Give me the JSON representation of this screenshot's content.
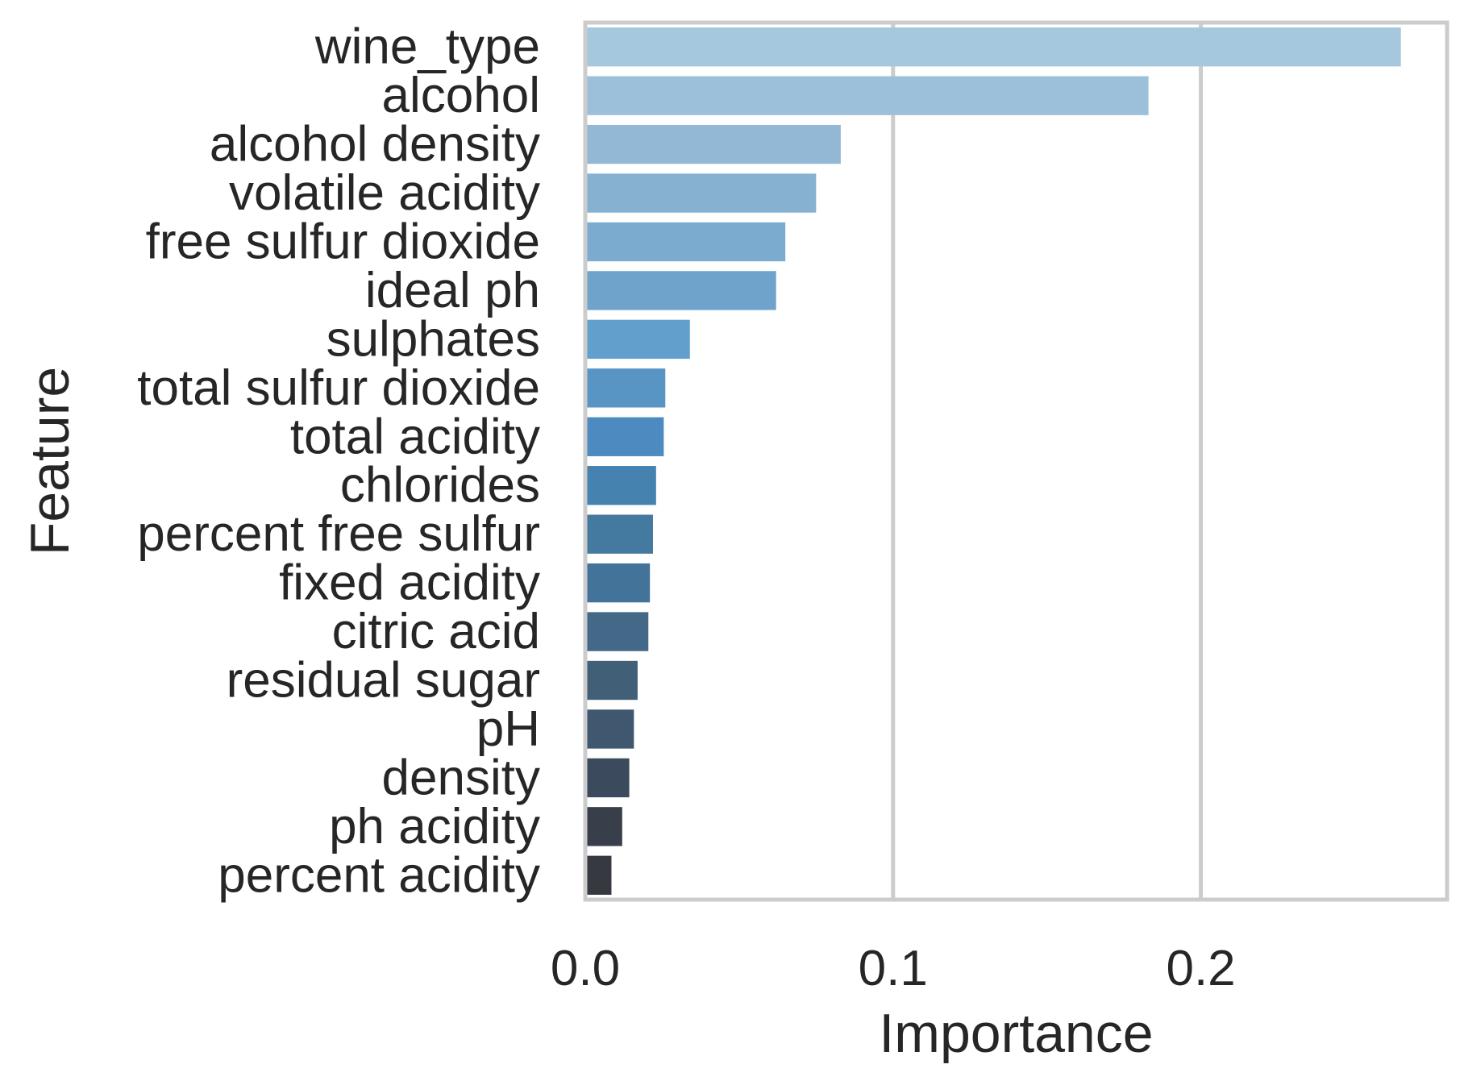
{
  "chart_data": {
    "type": "bar",
    "orientation": "horizontal",
    "title": "",
    "xlabel": "Importance",
    "ylabel": "Feature",
    "xlim": [
      0,
      0.28
    ],
    "xticks": [
      0.0,
      0.1,
      0.2
    ],
    "xtick_labels": [
      "0.0",
      "0.1",
      "0.2"
    ],
    "grid": "vertical",
    "categories": [
      "wine_type",
      "alcohol",
      "alcohol density",
      "volatile acidity",
      "free sulfur dioxide",
      "ideal ph",
      "sulphates",
      "total sulfur dioxide",
      "total acidity",
      "chlorides",
      "percent free sulfur",
      "fixed acidity",
      "citric acid",
      "residual sugar",
      "pH",
      "density",
      "ph acidity",
      "percent acidity"
    ],
    "values": [
      0.265,
      0.183,
      0.083,
      0.075,
      0.065,
      0.062,
      0.034,
      0.026,
      0.0255,
      0.023,
      0.022,
      0.021,
      0.0205,
      0.017,
      0.0158,
      0.0143,
      0.012,
      0.0085
    ],
    "colors": [
      "#a6c8df",
      "#9dc0da",
      "#92b8d5",
      "#87b1d1",
      "#7cabd0",
      "#70a3cb",
      "#639fcc",
      "#5895c4",
      "#4d8ac0",
      "#4682b0",
      "#457aa0",
      "#44739a",
      "#446888",
      "#416078",
      "#3f586f",
      "#3b4a5c",
      "#393f4a",
      "#363a40"
    ]
  }
}
